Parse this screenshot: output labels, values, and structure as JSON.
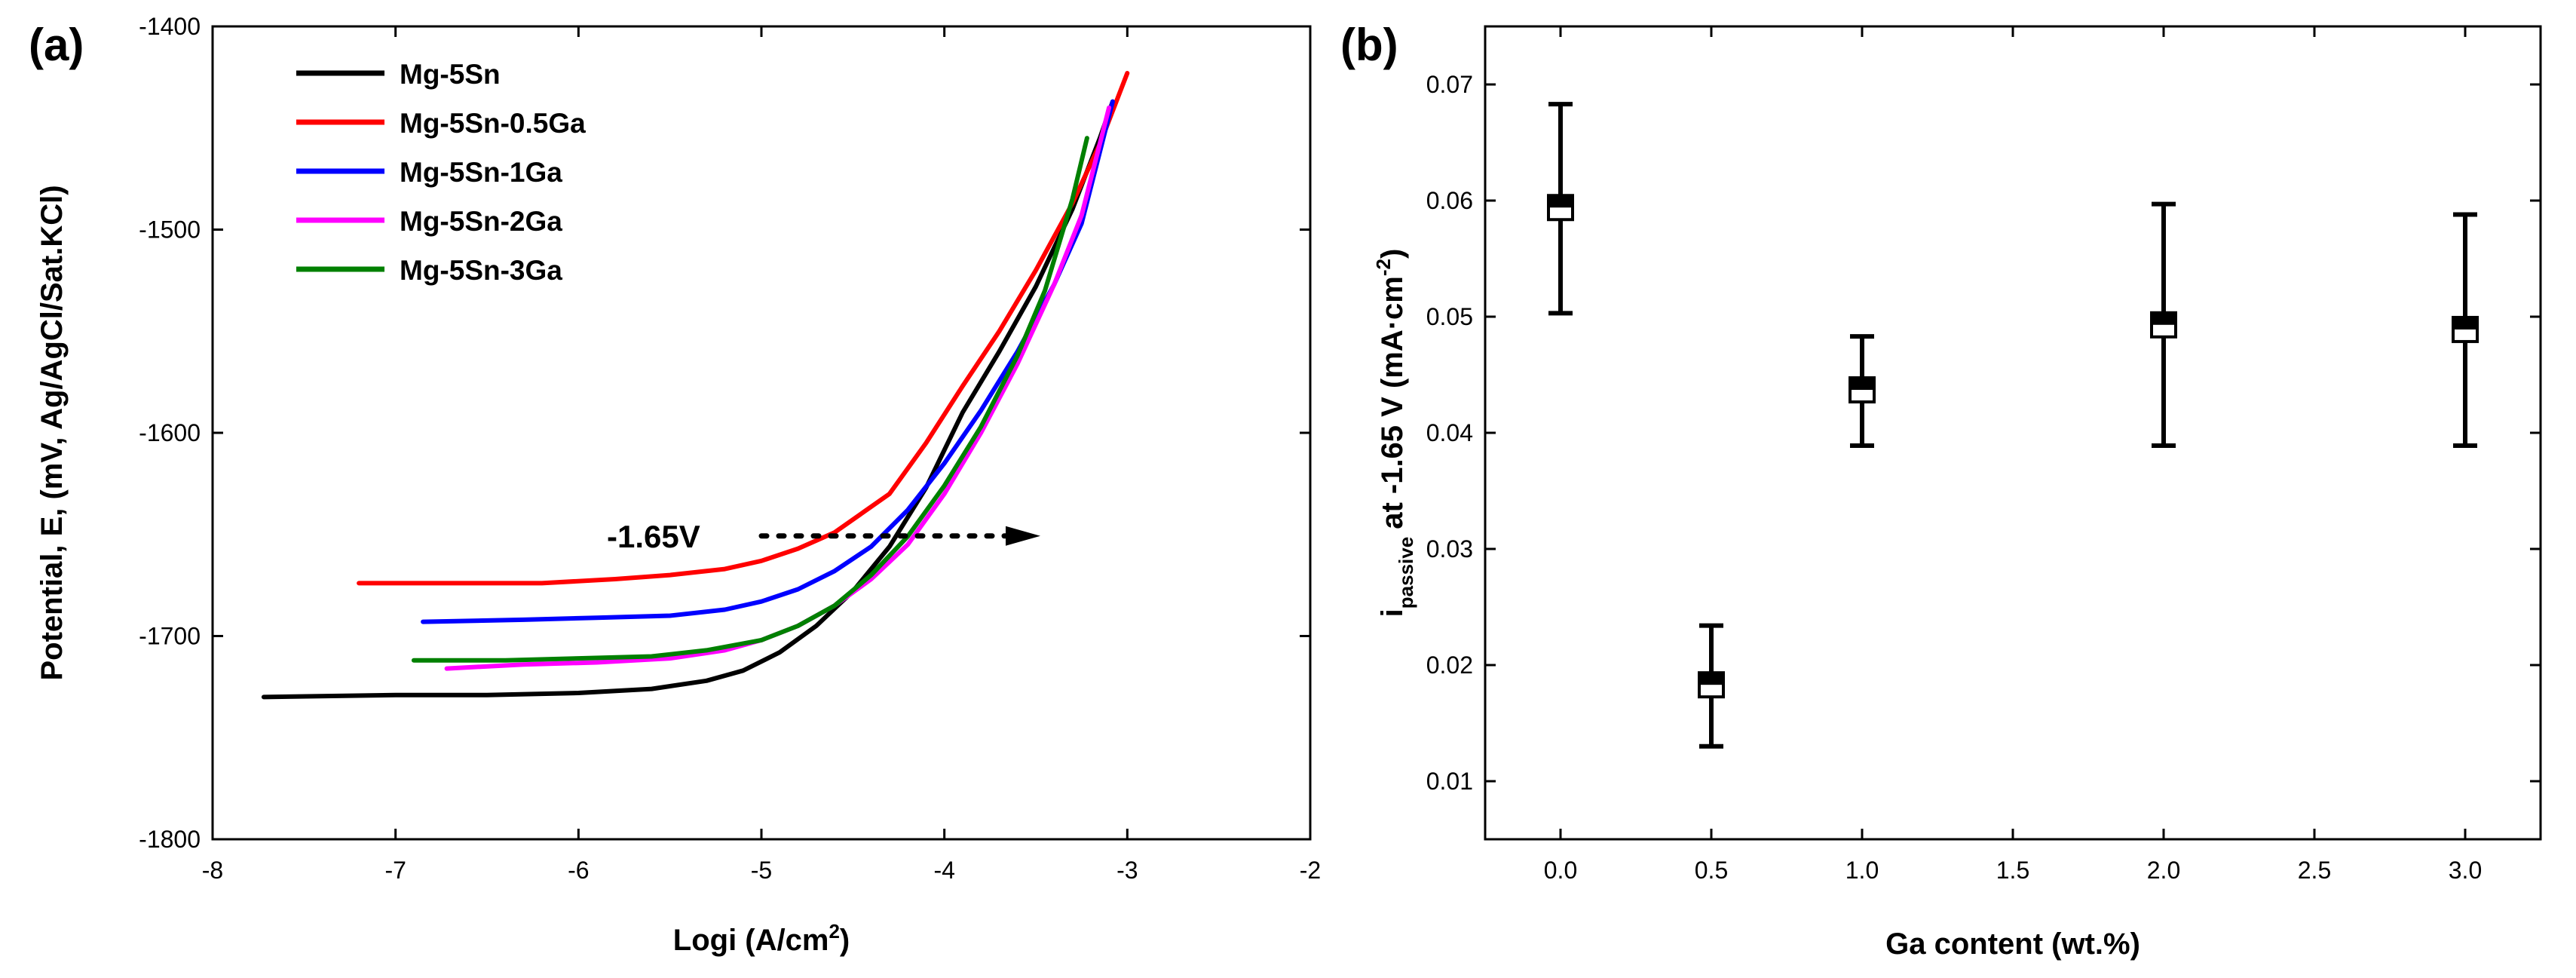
{
  "chart_data": [
    {
      "id": "a",
      "type": "line",
      "panel_label": "(a)",
      "xlabel": "Logi (A/cm",
      "xlabel_sup": "2",
      "xlabel_end": ")",
      "ylabel": "Potential, E, (mV, Ag/AgCl/Sat.KCl)",
      "xlim": [
        -8,
        -2
      ],
      "ylim": [
        -1800,
        -1400
      ],
      "xticks": [
        -8,
        -7,
        -6,
        -5,
        -4,
        -3,
        -2
      ],
      "yticks": [
        -1800,
        -1700,
        -1600,
        -1500,
        -1400
      ],
      "xtick_labels": [
        "-8",
        "-7",
        "-6",
        "-5",
        "-4",
        "-3",
        "-2"
      ],
      "ytick_labels": [
        "-1800",
        "-1700",
        "-1600",
        "-1500",
        "-1400"
      ],
      "legend_position": "top-left",
      "series": [
        {
          "name": "Mg-5Sn",
          "color": "#000000",
          "x": [
            -7.72,
            -7.0,
            -6.5,
            -6.0,
            -5.6,
            -5.3,
            -5.1,
            -4.9,
            -4.7,
            -4.5,
            -4.3,
            -4.1,
            -3.9,
            -3.7,
            -3.5,
            -3.3,
            -3.15,
            -3.08
          ],
          "y": [
            -1730,
            -1729,
            -1729,
            -1728,
            -1726,
            -1722,
            -1717,
            -1708,
            -1695,
            -1678,
            -1656,
            -1627,
            -1590,
            -1560,
            -1528,
            -1490,
            -1455,
            -1437
          ]
        },
        {
          "name": "Mg-5Sn-0.5Ga",
          "color": "#ff0000",
          "x": [
            -7.2,
            -6.6,
            -6.2,
            -5.8,
            -5.5,
            -5.2,
            -5.0,
            -4.8,
            -4.6,
            -4.3,
            -4.1,
            -3.9,
            -3.7,
            -3.5,
            -3.3,
            -3.15,
            -3.0
          ],
          "y": [
            -1674,
            -1674,
            -1674,
            -1672,
            -1670,
            -1667,
            -1663,
            -1657,
            -1649,
            -1630,
            -1605,
            -1577,
            -1550,
            -1520,
            -1487,
            -1458,
            -1423
          ]
        },
        {
          "name": "Mg-5Sn-1Ga",
          "color": "#0000ff",
          "x": [
            -6.85,
            -6.3,
            -5.9,
            -5.5,
            -5.2,
            -5.0,
            -4.8,
            -4.6,
            -4.4,
            -4.2,
            -4.0,
            -3.8,
            -3.6,
            -3.4,
            -3.25,
            -3.08
          ],
          "y": [
            -1693,
            -1692,
            -1691,
            -1690,
            -1687,
            -1683,
            -1677,
            -1668,
            -1656,
            -1638,
            -1615,
            -1589,
            -1560,
            -1527,
            -1497,
            -1437
          ]
        },
        {
          "name": "Mg-5Sn-2Ga",
          "color": "#ff00ff",
          "x": [
            -6.72,
            -6.3,
            -5.9,
            -5.5,
            -5.2,
            -5.0,
            -4.8,
            -4.6,
            -4.4,
            -4.2,
            -4.0,
            -3.8,
            -3.6,
            -3.4,
            -3.25,
            -3.1
          ],
          "y": [
            -1716,
            -1714,
            -1713,
            -1711,
            -1707,
            -1702,
            -1695,
            -1685,
            -1672,
            -1655,
            -1630,
            -1600,
            -1566,
            -1527,
            -1493,
            -1440
          ]
        },
        {
          "name": "Mg-5Sn-3Ga",
          "color": "#008000",
          "x": [
            -6.9,
            -6.4,
            -6.0,
            -5.6,
            -5.3,
            -5.0,
            -4.8,
            -4.6,
            -4.4,
            -4.2,
            -4.0,
            -3.8,
            -3.6,
            -3.45,
            -3.3,
            -3.22
          ],
          "y": [
            -1712,
            -1712,
            -1711,
            -1710,
            -1707,
            -1702,
            -1695,
            -1685,
            -1670,
            -1651,
            -1626,
            -1597,
            -1562,
            -1530,
            -1485,
            -1455
          ]
        }
      ],
      "annotation": {
        "text": "-1.65V",
        "arrow_x_from": -5.0,
        "arrow_x_to": -3.5,
        "y": -1650
      }
    },
    {
      "id": "b",
      "type": "scatter",
      "panel_label": "(b)",
      "xlabel": "Ga content (wt.%)",
      "ylabel_main": "i",
      "ylabel_sub": "passive",
      "ylabel_rest": "at -1.65 V (mA·cm",
      "ylabel_sup": "-2",
      "ylabel_end": ")",
      "xlim": [
        -0.25,
        3.25
      ],
      "ylim": [
        0.005,
        0.075
      ],
      "xticks": [
        0.0,
        0.5,
        1.0,
        1.5,
        2.0,
        2.5,
        3.0
      ],
      "yticks": [
        0.01,
        0.02,
        0.03,
        0.04,
        0.05,
        0.06,
        0.07
      ],
      "xtick_labels": [
        "0.0",
        "0.5",
        "1.0",
        "1.5",
        "2.0",
        "2.5",
        "3.0"
      ],
      "ytick_labels": [
        "0.01",
        "0.02",
        "0.03",
        "0.04",
        "0.05",
        "0.06",
        "0.07"
      ],
      "points": [
        {
          "x": 0.0,
          "y": 0.0594,
          "err_low": 0.0503,
          "err_high": 0.0683
        },
        {
          "x": 0.5,
          "y": 0.0183,
          "err_low": 0.013,
          "err_high": 0.0234
        },
        {
          "x": 1.0,
          "y": 0.0437,
          "err_low": 0.0389,
          "err_high": 0.0483
        },
        {
          "x": 2.0,
          "y": 0.0493,
          "err_low": 0.0389,
          "err_high": 0.0597
        },
        {
          "x": 3.0,
          "y": 0.0489,
          "err_low": 0.0389,
          "err_high": 0.0588
        }
      ]
    }
  ]
}
